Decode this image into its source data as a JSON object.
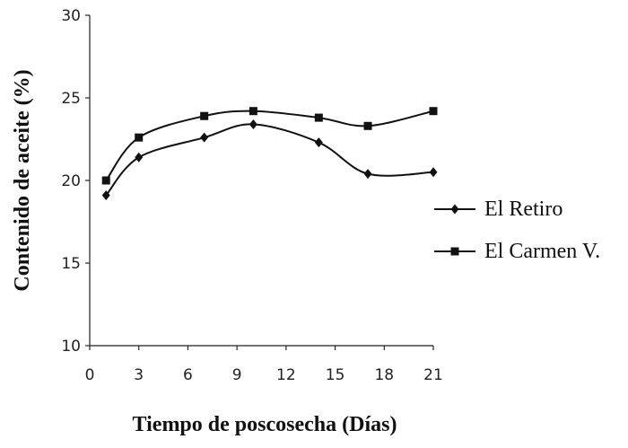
{
  "chart_data": {
    "type": "line",
    "title": "",
    "xlabel": "Tiempo de poscosecha (Días)",
    "ylabel": "Contenido de aceite (%)",
    "xlim": [
      0,
      21
    ],
    "ylim": [
      10,
      30
    ],
    "xticks": [
      0,
      3,
      6,
      9,
      12,
      15,
      18,
      21
    ],
    "yticks": [
      10,
      15,
      20,
      25,
      30
    ],
    "grid": false,
    "legend_position": "right",
    "series": [
      {
        "name": "El Retiro",
        "marker": "diamond",
        "color": "#111111",
        "x": [
          1,
          3,
          7,
          10,
          14,
          17,
          21
        ],
        "y": [
          19.1,
          21.4,
          22.6,
          23.4,
          22.3,
          20.4,
          20.5
        ]
      },
      {
        "name": "El Carmen V.",
        "marker": "square",
        "color": "#111111",
        "x": [
          1,
          3,
          7,
          10,
          14,
          17,
          21
        ],
        "y": [
          20.0,
          22.6,
          23.9,
          24.2,
          23.8,
          23.3,
          24.2
        ]
      }
    ]
  }
}
